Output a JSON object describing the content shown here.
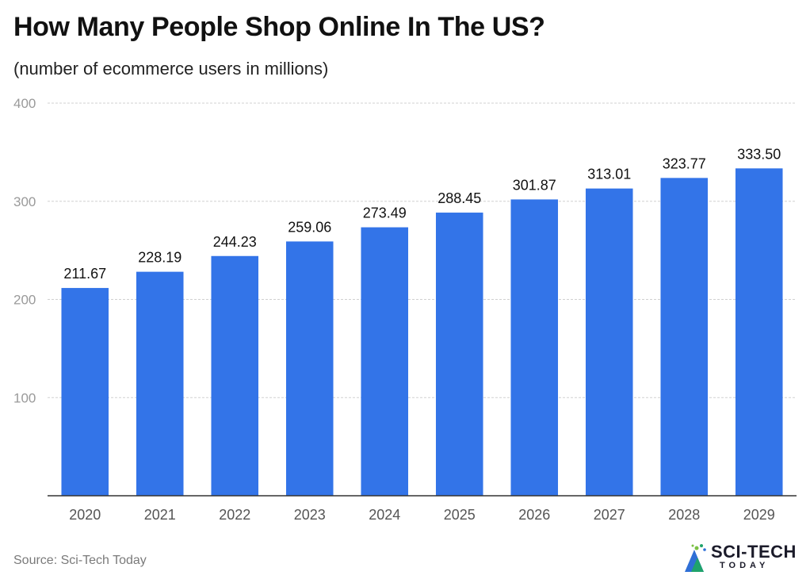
{
  "header": {
    "title": "How Many People Shop Online In The US?",
    "subtitle": "(number of ecommerce users in millions)"
  },
  "footer": {
    "source": "Source: Sci-Tech Today"
  },
  "logo": {
    "line1": "SCI-TECH",
    "line2": "TODAY",
    "icon": "sci-tech-logo-icon"
  },
  "colors": {
    "bar": "#3374e8",
    "grid": "#d0d0d0",
    "axis": "#333333",
    "tick_label": "#9a9a9a",
    "category_label": "#555555",
    "value_label": "#111111"
  },
  "chart_data": {
    "type": "bar",
    "title": "How Many People Shop Online In The US?",
    "subtitle": "(number of ecommerce users in millions)",
    "categories": [
      "2020",
      "2021",
      "2022",
      "2023",
      "2024",
      "2025",
      "2026",
      "2027",
      "2028",
      "2029"
    ],
    "values": [
      211.67,
      228.19,
      244.23,
      259.06,
      273.49,
      288.45,
      301.87,
      313.01,
      323.77,
      333.5
    ],
    "value_labels": [
      "211.67",
      "228.19",
      "244.23",
      "259.06",
      "273.49",
      "288.45",
      "301.87",
      "313.01",
      "323.77",
      "333.50"
    ],
    "ylim": [
      0,
      400
    ],
    "yticks": [
      100,
      200,
      300,
      400
    ],
    "ytick_labels": [
      "100",
      "200",
      "300",
      "400"
    ],
    "grid": true,
    "xlabel": "",
    "ylabel": ""
  }
}
